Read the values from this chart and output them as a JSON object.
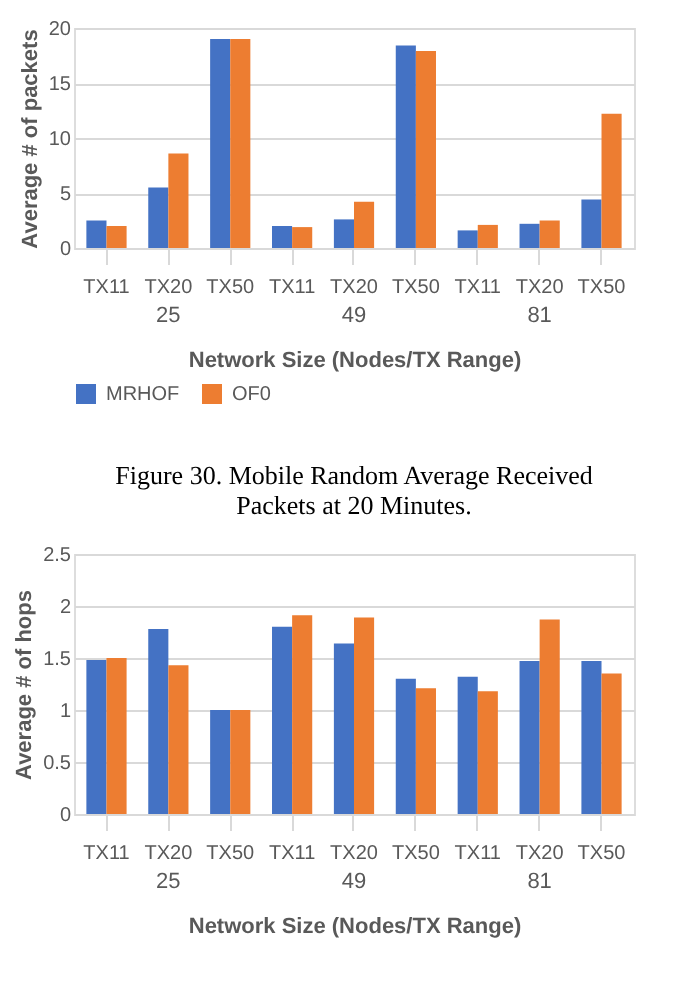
{
  "chart_data": [
    {
      "type": "bar",
      "title": "Figure 30. Mobile Random Average Received Packets at 20 Minutes.",
      "xlabel": "Network Size (Nodes/TX Range)",
      "ylabel": "Average # of packets",
      "categories": [
        "TX11",
        "TX20",
        "TX50",
        "TX11",
        "TX20",
        "TX50",
        "TX11",
        "TX20",
        "TX50"
      ],
      "annotations": [
        "25",
        "49",
        "81"
      ],
      "series": [
        {
          "name": "MRHOF",
          "color": "#4472c4",
          "values": [
            2.5,
            5.5,
            19,
            2,
            2.6,
            18.4,
            1.6,
            2.2,
            4.4
          ]
        },
        {
          "name": "OF0",
          "color": "#ed7d31",
          "values": [
            2,
            8.6,
            19,
            1.9,
            4.2,
            17.9,
            2.1,
            2.5,
            12.2
          ]
        }
      ],
      "ylim": [
        0,
        20
      ],
      "yticks": [
        0,
        5,
        10,
        15,
        20
      ],
      "grid": "y",
      "legend": "bottom"
    },
    {
      "type": "bar",
      "xlabel": "Network Size (Nodes/TX Range)",
      "ylabel": "Average # of hops",
      "categories": [
        "TX11",
        "TX20",
        "TX50",
        "TX11",
        "TX20",
        "TX50",
        "TX11",
        "TX20",
        "TX50"
      ],
      "annotations": [
        "25",
        "49",
        "81"
      ],
      "series": [
        {
          "color": "#4472c4",
          "values": [
            1.48,
            1.78,
            1.0,
            1.8,
            1.64,
            1.3,
            1.32,
            1.47,
            1.47
          ]
        },
        {
          "color": "#ed7d31",
          "values": [
            1.5,
            1.43,
            1.0,
            1.91,
            1.89,
            1.21,
            1.18,
            1.87,
            1.35
          ]
        }
      ],
      "ylim": [
        0,
        2.5
      ],
      "yticks": [
        0,
        0.5,
        1,
        1.5,
        2,
        2.5
      ],
      "grid": "y"
    }
  ]
}
